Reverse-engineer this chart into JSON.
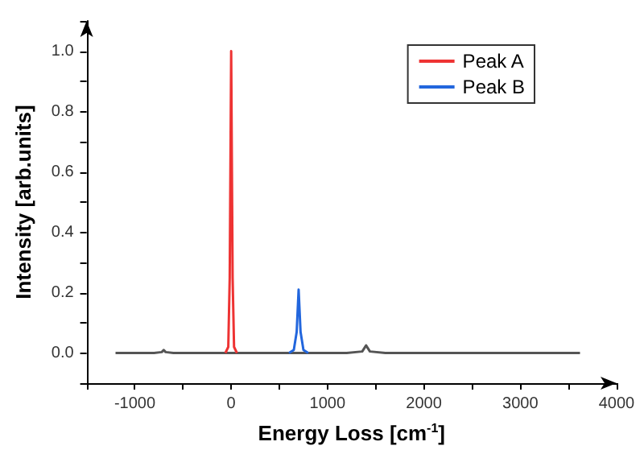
{
  "chart_data": {
    "type": "line",
    "xlabel": "Energy Loss [cm$^{-1}$]",
    "ylabel": "Intensity [arb.units]",
    "xlim": [
      -1500,
      4000
    ],
    "ylim": [
      -0.1,
      1.1
    ],
    "xticks": [
      {
        "value": -1500,
        "label": null
      },
      -1000,
      {
        "value": -500,
        "label": null
      },
      0,
      {
        "value": 500,
        "label": null
      },
      1000,
      {
        "value": 1500,
        "label": null
      },
      2000,
      {
        "value": 2500,
        "label": null
      },
      3000,
      {
        "value": 3500,
        "label": null
      },
      4000
    ],
    "yticks": [
      {
        "value": -0.1,
        "label": null
      },
      {
        "value": 0,
        "label": "0.0"
      },
      {
        "value": 0.1,
        "label": null
      },
      {
        "value": 0.2,
        "label": "0.2"
      },
      {
        "value": 0.3,
        "label": null
      },
      {
        "value": 0.4,
        "label": "0.4"
      },
      {
        "value": 0.5,
        "label": null
      },
      {
        "value": 0.6,
        "label": "0.6"
      },
      {
        "value": 0.7,
        "label": null
      },
      {
        "value": 0.8,
        "label": "0.8"
      },
      {
        "value": 0.9,
        "label": null
      },
      {
        "value": 1.0,
        "label": "1.0"
      }
    ],
    "grid": false,
    "legend": "top right",
    "marker": "none",
    "line_style": "solid",
    "series": [
      {
        "color": "#555555",
        "x": [
          -1200,
          -800,
          -720,
          -700,
          -680,
          -600,
          -300,
          -60,
          60,
          200,
          500,
          600,
          800,
          1200,
          1360,
          1400,
          1440,
          1600,
          2000,
          2500,
          3000,
          3620
        ],
        "values": [
          0,
          0,
          0.003,
          0.01,
          0.003,
          0,
          0,
          0,
          0,
          0,
          0,
          0,
          0,
          0,
          0.005,
          0.025,
          0.005,
          0,
          0,
          0,
          0,
          0
        ]
      },
      {
        "name": "Peak A",
        "color": "#ee3333",
        "x": [
          -60,
          -30,
          -15,
          0,
          15,
          30,
          60
        ],
        "values": [
          0,
          0.02,
          0.25,
          1.0,
          0.25,
          0.02,
          0
        ]
      },
      {
        "name": "Peak B",
        "color": "#2266dd",
        "x": [
          600,
          650,
          680,
          700,
          720,
          750,
          800
        ],
        "values": [
          0,
          0.01,
          0.07,
          0.21,
          0.07,
          0.01,
          0
        ]
      }
    ]
  }
}
